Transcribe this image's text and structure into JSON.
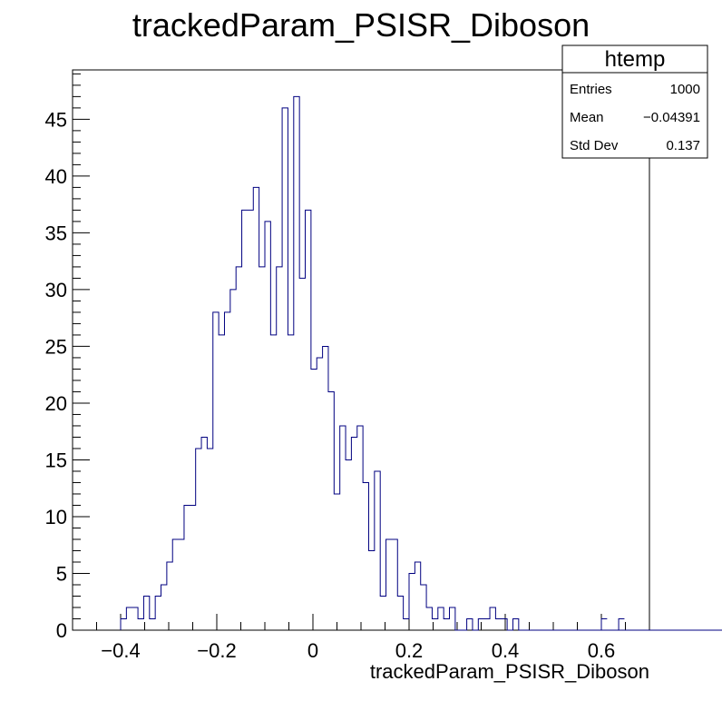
{
  "chart_data": {
    "type": "histogram",
    "title": "trackedParam_PSISR_Diboson",
    "xlabel": "trackedParam_PSISR_Diboson",
    "ylabel": "",
    "xlim": [
      -0.5,
      0.7
    ],
    "ylim": [
      0,
      49.35
    ],
    "grid": false,
    "x_ticks": [
      {
        "value": -0.4,
        "label": "−0.4"
      },
      {
        "value": -0.2,
        "label": "−0.2"
      },
      {
        "value": 0,
        "label": "0"
      },
      {
        "value": 0.2,
        "label": "0.2"
      },
      {
        "value": 0.4,
        "label": "0.4"
      },
      {
        "value": 0.6,
        "label": "0.6"
      }
    ],
    "y_ticks": [
      {
        "value": 0,
        "label": "0"
      },
      {
        "value": 5,
        "label": "5"
      },
      {
        "value": 10,
        "label": "10"
      },
      {
        "value": 15,
        "label": "15"
      },
      {
        "value": 20,
        "label": "20"
      },
      {
        "value": 25,
        "label": "25"
      },
      {
        "value": 30,
        "label": "30"
      },
      {
        "value": 35,
        "label": "35"
      },
      {
        "value": 40,
        "label": "40"
      },
      {
        "value": 45,
        "label": "45"
      }
    ],
    "bin_start": -0.4,
    "bin_width": 0.012,
    "counts": [
      1,
      2,
      2,
      1,
      3,
      1,
      3,
      4,
      6,
      8,
      8,
      11,
      11,
      16,
      17,
      16,
      28,
      26,
      28,
      30,
      32,
      37,
      37,
      39,
      32,
      36,
      26,
      32,
      46,
      26,
      47,
      31,
      37,
      23,
      24,
      25,
      21,
      12,
      18,
      15,
      17,
      18,
      13,
      7,
      14,
      3,
      8,
      8,
      3,
      1,
      5,
      6,
      4,
      2,
      1,
      2,
      1,
      2,
      0,
      0,
      1,
      0,
      1,
      1,
      2,
      1,
      1,
      0,
      1,
      0,
      0,
      0,
      0,
      0,
      0,
      0,
      0,
      0,
      0,
      0,
      0,
      0,
      0,
      0,
      0,
      0,
      0,
      0,
      0,
      0,
      0,
      0,
      0,
      0,
      0,
      0,
      0,
      0,
      0,
      0,
      0,
      0,
      0,
      0,
      0,
      0,
      0,
      0,
      0,
      0,
      0,
      0,
      0,
      0,
      0,
      0,
      0,
      0,
      0,
      0,
      0
    ],
    "extra_bins": [
      {
        "x_low": 0.6,
        "count": 1
      },
      {
        "x_low": 0.636,
        "count": 1
      }
    ],
    "line_color": "#000080"
  },
  "stats_box": {
    "title": "htemp",
    "rows": [
      {
        "label": "Entries",
        "value": "1000"
      },
      {
        "label": "Mean",
        "value": "−0.04391"
      },
      {
        "label": "Std Dev",
        "value": "0.137"
      }
    ]
  }
}
